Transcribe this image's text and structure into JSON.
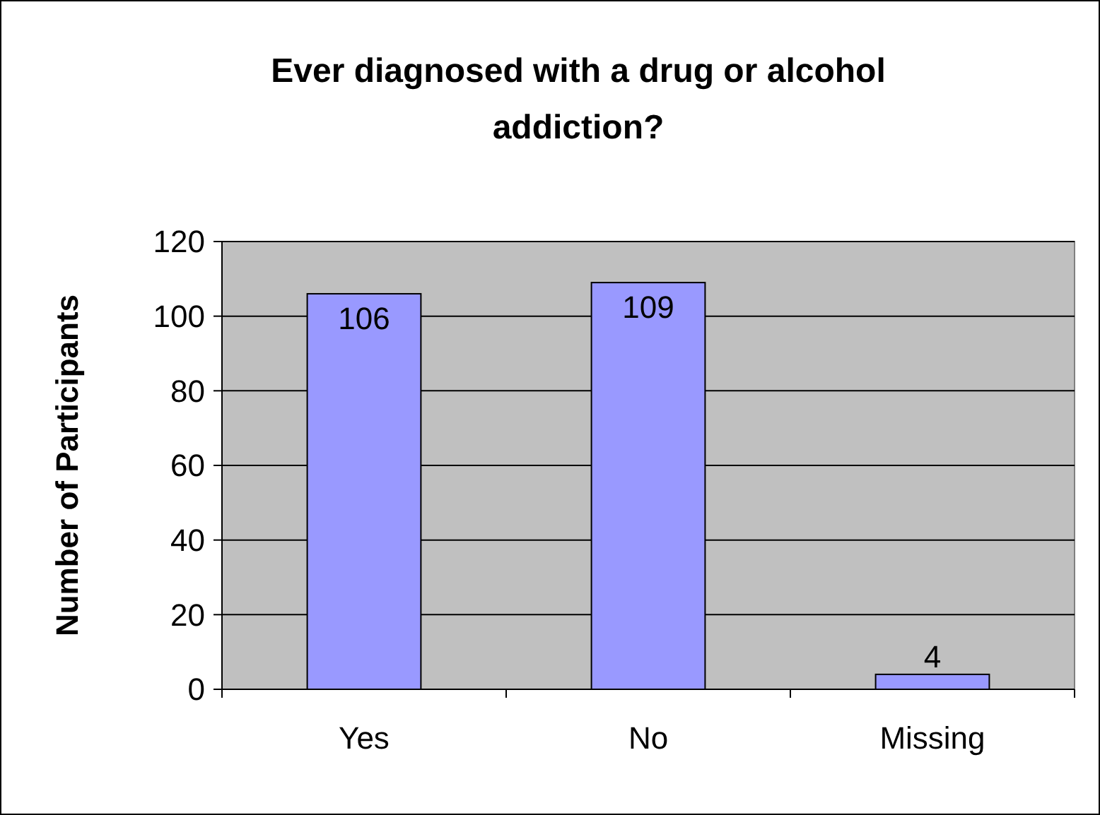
{
  "chart_data": {
    "type": "bar",
    "title": "Ever diagnosed with a drug or alcohol addiction?",
    "ylabel": "Number of Participants",
    "categories": [
      "Yes",
      "No",
      "Missing"
    ],
    "values": [
      106,
      109,
      4
    ],
    "color": "#9999ff",
    "ylim": [
      0,
      120
    ],
    "yticks": [
      0,
      20,
      40,
      60,
      80,
      100,
      120
    ],
    "grid": "y",
    "data_labels": true
  }
}
